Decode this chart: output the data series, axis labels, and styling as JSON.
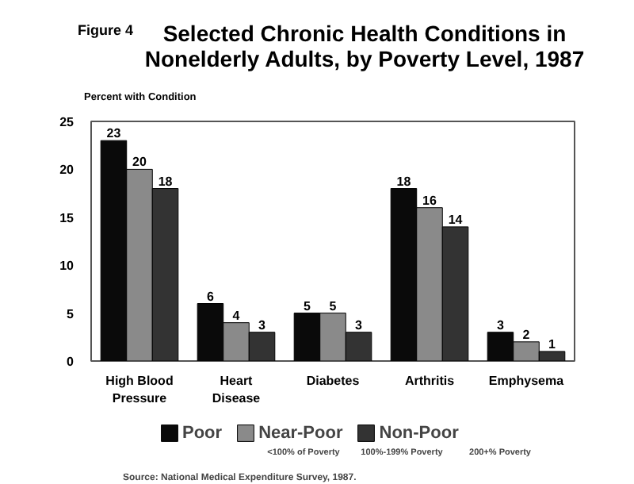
{
  "chart_data": {
    "type": "bar",
    "title": "Selected Chronic Health Conditions in Nonelderly Adults, by Poverty Level, 1987",
    "ylabel": "Percent with Condition",
    "categories": [
      "High Blood Pressure",
      "Heart Disease",
      "Diabetes",
      "Arthritis",
      "Emphysema"
    ],
    "series": [
      {
        "name": "Poor",
        "color": "#0a0a0a",
        "values": [
          23,
          6,
          5,
          18,
          3
        ]
      },
      {
        "name": "Near-Poor",
        "color": "#8a8a8a",
        "values": [
          20,
          4,
          5,
          16,
          2
        ]
      },
      {
        "name": "Non-Poor",
        "color": "#333333",
        "values": [
          18,
          3,
          3,
          14,
          1
        ]
      }
    ],
    "annotations": [
      "Figure 4",
      "<100% of Poverty",
      "100%-199% Poverty",
      "200+% Poverty",
      "Source: National Medical Expenditure Survey, 1987."
    ],
    "ylim": [
      0,
      25
    ],
    "yticks": [
      0,
      5,
      10,
      15,
      20,
      25
    ],
    "data_labels": true,
    "grid": false,
    "legend": "bottom"
  }
}
